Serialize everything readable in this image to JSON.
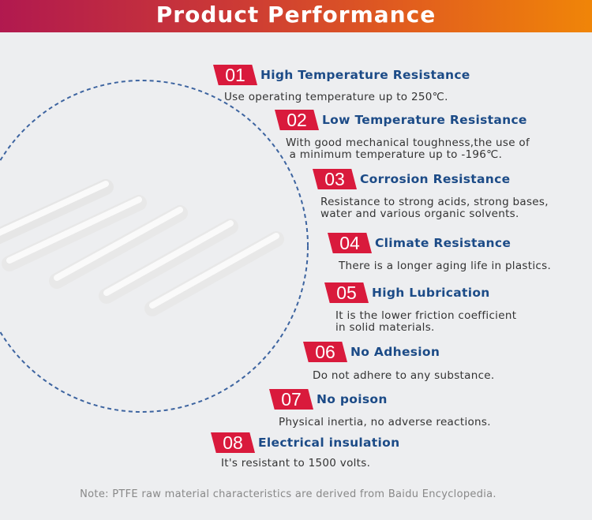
{
  "header": {
    "title": "Product Performance"
  },
  "items": [
    {
      "num": "01",
      "title": "High Temperature Resistance",
      "desc": "Use operating temperature up to 250℃."
    },
    {
      "num": "02",
      "title": "Low Temperature Resistance",
      "desc": "With good mechanical toughness,the use of\n a minimum temperature up to -196℃."
    },
    {
      "num": "03",
      "title": "Corrosion Resistance",
      "desc": "Resistance to strong acids, strong bases,\nwater and various organic solvents."
    },
    {
      "num": "04",
      "title": "Climate Resistance",
      "desc": "There is a longer aging life in plastics."
    },
    {
      "num": "05",
      "title": "High Lubrication",
      "desc": "It is the lower friction coefficient\nin solid materials."
    },
    {
      "num": "06",
      "title": "No Adhesion",
      "desc": "Do not adhere to any substance."
    },
    {
      "num": "07",
      "title": "No poison",
      "desc": "Physical inertia, no adverse reactions."
    },
    {
      "num": "08",
      "title": "Electrical insulation",
      "desc": "It's resistant to 1500 volts."
    }
  ],
  "note": "Note: PTFE raw material characteristics are derived from Baidu Encyclopedia.",
  "colors": {
    "badge": "#d91a3c",
    "title": "#1c4b87",
    "header_start": "#b1194f",
    "header_end": "#f08508"
  }
}
